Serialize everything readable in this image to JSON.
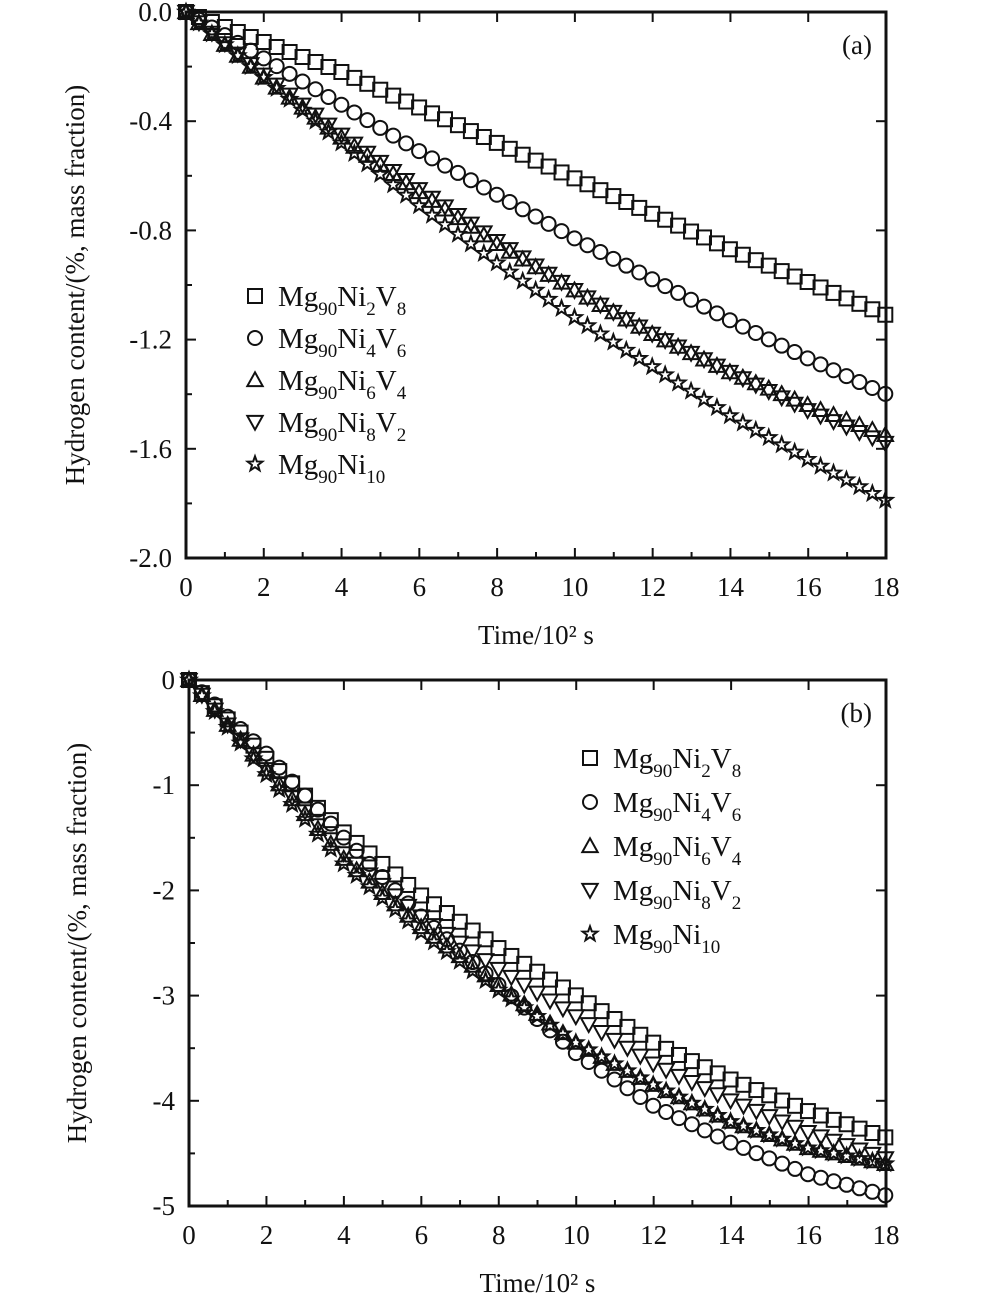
{
  "chart_data": [
    {
      "type": "scatter",
      "panel_label": "(a)",
      "xlabel": "Time/10² s",
      "ylabel": "Hydrogen content/(%, mass fraction)",
      "xlim": [
        0,
        18
      ],
      "ylim": [
        -2.0,
        0.0
      ],
      "xticks": [
        "0",
        "2",
        "4",
        "6",
        "8",
        "10",
        "12",
        "14",
        "16",
        "18"
      ],
      "yticks": [
        "0.0",
        "-0.4",
        "-0.8",
        "-1.2",
        "-1.6",
        "-2.0"
      ],
      "legend_position": "center-left",
      "marker_color": "#111111",
      "series": [
        {
          "name": "Mg90Ni2V8",
          "marker": "square",
          "x": [
            0,
            2,
            4,
            6,
            8,
            10,
            12,
            14,
            16,
            18
          ],
          "y": [
            0,
            -0.11,
            -0.22,
            -0.35,
            -0.48,
            -0.61,
            -0.74,
            -0.87,
            -0.99,
            -1.11
          ]
        },
        {
          "name": "Mg90Ni4V6",
          "marker": "circle",
          "x": [
            0,
            2,
            4,
            6,
            8,
            10,
            12,
            14,
            16,
            18
          ],
          "y": [
            0,
            -0.17,
            -0.34,
            -0.51,
            -0.67,
            -0.83,
            -0.98,
            -1.13,
            -1.27,
            -1.4
          ]
        },
        {
          "name": "Mg90Ni6V4",
          "marker": "triangle-up",
          "x": [
            0,
            2,
            4,
            6,
            8,
            10,
            12,
            14,
            16,
            18
          ],
          "y": [
            0,
            -0.24,
            -0.46,
            -0.66,
            -0.85,
            -1.02,
            -1.18,
            -1.32,
            -1.44,
            -1.55
          ]
        },
        {
          "name": "Mg90Ni8V2",
          "marker": "triangle-down",
          "x": [
            0,
            2,
            4,
            6,
            8,
            10,
            12,
            14,
            16,
            18
          ],
          "y": [
            0,
            -0.23,
            -0.45,
            -0.65,
            -0.84,
            -1.02,
            -1.18,
            -1.32,
            -1.46,
            -1.58
          ]
        },
        {
          "name": "Mg90Ni10",
          "marker": "star",
          "x": [
            0,
            2,
            4,
            6,
            8,
            10,
            12,
            14,
            16,
            18
          ],
          "y": [
            0,
            -0.24,
            -0.48,
            -0.71,
            -0.92,
            -1.12,
            -1.3,
            -1.48,
            -1.64,
            -1.79
          ]
        }
      ]
    },
    {
      "type": "scatter",
      "panel_label": "(b)",
      "xlabel": "Time/10² s",
      "ylabel": "Hydrogen content/(%, mass fraction)",
      "xlim": [
        0,
        18
      ],
      "ylim": [
        -5,
        0
      ],
      "xticks": [
        "0",
        "2",
        "4",
        "6",
        "8",
        "10",
        "12",
        "14",
        "16",
        "18"
      ],
      "yticks": [
        "0",
        "-1",
        "-2",
        "-3",
        "-4",
        "-5"
      ],
      "legend_position": "top-right",
      "marker_color": "#111111",
      "series": [
        {
          "name": "Mg90Ni2V8",
          "marker": "square",
          "x": [
            0,
            2,
            4,
            6,
            8,
            10,
            12,
            14,
            16,
            18
          ],
          "y": [
            0,
            -0.75,
            -1.45,
            -2.05,
            -2.55,
            -3.0,
            -3.45,
            -3.8,
            -4.1,
            -4.35
          ]
        },
        {
          "name": "Mg90Ni4V6",
          "marker": "circle",
          "x": [
            0,
            2,
            4,
            6,
            8,
            10,
            12,
            14,
            16,
            18
          ],
          "y": [
            0,
            -0.7,
            -1.5,
            -2.25,
            -2.9,
            -3.55,
            -4.05,
            -4.4,
            -4.7,
            -4.9
          ]
        },
        {
          "name": "Mg90Ni6V4",
          "marker": "triangle-up",
          "x": [
            0,
            2,
            4,
            6,
            8,
            10,
            12,
            14,
            16,
            18
          ],
          "y": [
            0,
            -0.85,
            -1.7,
            -2.35,
            -2.9,
            -3.45,
            -3.85,
            -4.2,
            -4.45,
            -4.6
          ]
        },
        {
          "name": "Mg90Ni8V2",
          "marker": "triangle-down",
          "x": [
            0,
            2,
            4,
            6,
            8,
            10,
            12,
            14,
            16,
            18
          ],
          "y": [
            0,
            -0.85,
            -1.65,
            -2.25,
            -2.75,
            -3.2,
            -3.65,
            -4.0,
            -4.3,
            -4.55
          ]
        },
        {
          "name": "Mg90Ni10",
          "marker": "star",
          "x": [
            0,
            2,
            4,
            6,
            8,
            10,
            12,
            14,
            16,
            18
          ],
          "y": [
            0,
            -0.9,
            -1.75,
            -2.4,
            -2.95,
            -3.45,
            -3.85,
            -4.2,
            -4.45,
            -4.6
          ]
        }
      ]
    }
  ]
}
